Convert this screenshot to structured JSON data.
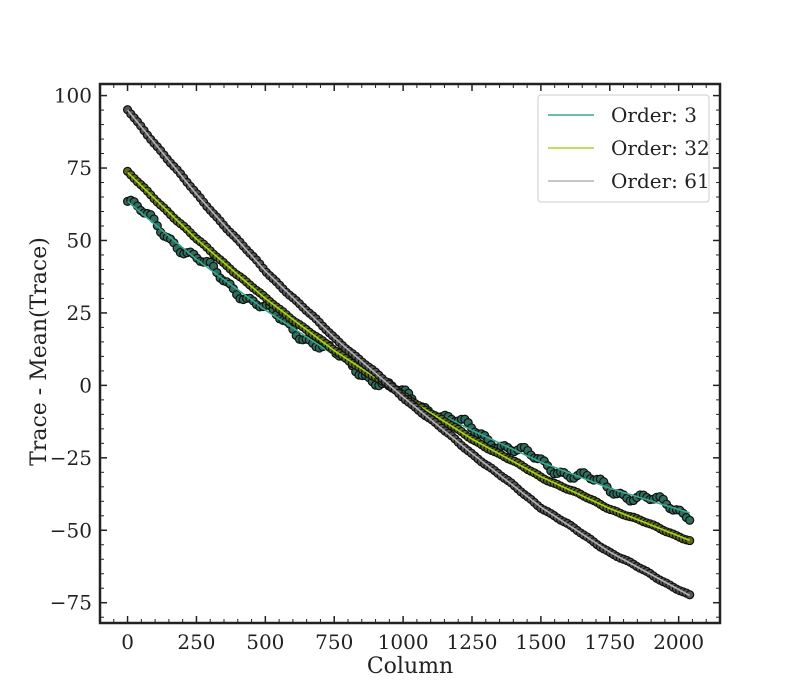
{
  "chart_data": {
    "type": "scatter",
    "xlabel": "Column",
    "ylabel": "Trace - Mean(Trace)",
    "xlim": [
      -100,
      2150
    ],
    "ylim": [
      -82,
      104
    ],
    "xticks": [
      0,
      250,
      500,
      750,
      1000,
      1250,
      1500,
      1750,
      2000
    ],
    "yticks": [
      100,
      75,
      50,
      25,
      0,
      -25,
      -50,
      -75
    ],
    "xtick_labels": [
      "0",
      "250",
      "500",
      "750",
      "1000",
      "1250",
      "1500",
      "1750",
      "2000"
    ],
    "ytick_labels": [
      "100",
      "75",
      "50",
      "25",
      "0",
      "−25",
      "−50",
      "−75"
    ],
    "grid": false,
    "legend_position": "top-right",
    "series": [
      {
        "name": "Order: 3",
        "color": "#3aa68c",
        "point_color": "#2e6e5e",
        "x": [
          0,
          250,
          500,
          750,
          1000,
          1250,
          1500,
          1750,
          2040
        ],
        "y": [
          63.5,
          43.5,
          26.0,
          10.5,
          -3.5,
          -15.5,
          -26.5,
          -35.5,
          -44.0
        ]
      },
      {
        "name": "Order: 32",
        "color": "#a6d61e",
        "point_color": "#5c6b1e",
        "x": [
          0,
          250,
          500,
          750,
          1000,
          1250,
          1500,
          1750,
          2040
        ],
        "y": [
          73.5,
          50.5,
          30.0,
          12.0,
          -3.5,
          -18.5,
          -31.5,
          -42.5,
          -53.5
        ]
      },
      {
        "name": "Order: 61",
        "color": "#b4b4b4",
        "point_color": "#555555",
        "x": [
          0,
          250,
          500,
          750,
          1000,
          1250,
          1500,
          1750,
          2040
        ],
        "y": [
          95.0,
          66.0,
          39.5,
          16.5,
          -4.0,
          -23.5,
          -42.0,
          -57.5,
          -72.5
        ]
      }
    ]
  }
}
